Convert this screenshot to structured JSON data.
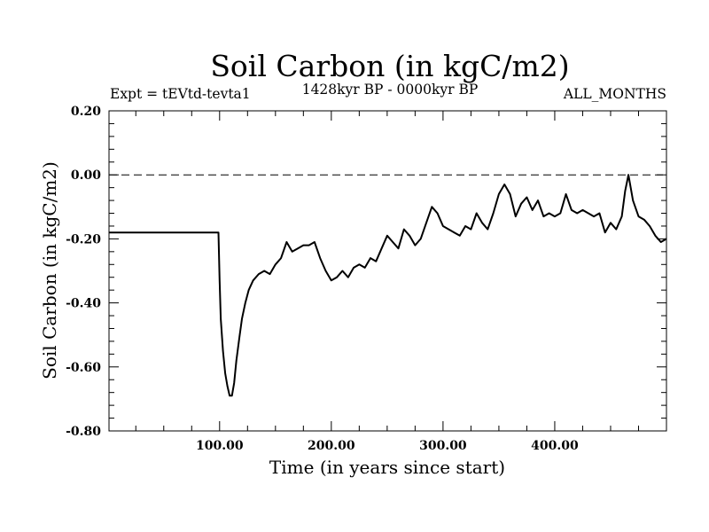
{
  "chart_data": {
    "type": "line",
    "title": "Soil Carbon (in kgC/m2)",
    "subtitle_left": "Expt = tEVtd-tevta1",
    "subtitle_center": "1428kyr BP - 0000kyr BP",
    "subtitle_right": "ALL_MONTHS",
    "xlabel": "Time (in years since start)",
    "ylabel": "Soil Carbon (in kgC/m2)",
    "xlim": [
      1,
      500
    ],
    "ylim": [
      -0.8,
      0.2
    ],
    "xticks": [
      {
        "value": 100,
        "label": "100.00"
      },
      {
        "value": 200,
        "label": "200.00"
      },
      {
        "value": 300,
        "label": "300.00"
      },
      {
        "value": 400,
        "label": "400.00"
      }
    ],
    "yticks": [
      {
        "value": 0.2,
        "label": "0.20"
      },
      {
        "value": 0.0,
        "label": "0.00"
      },
      {
        "value": -0.2,
        "label": "-0.20"
      },
      {
        "value": -0.4,
        "label": "-0.40"
      },
      {
        "value": -0.6,
        "label": "-0.60"
      },
      {
        "value": -0.8,
        "label": "-0.80"
      }
    ],
    "reference_line": {
      "y": 0.0,
      "style": "dashed"
    },
    "series": [
      {
        "name": "Soil Carbon",
        "color": "#000000",
        "x": [
          1,
          50,
          99,
          100,
          101,
          103,
          105,
          107,
          109,
          111,
          113,
          115,
          118,
          120,
          123,
          126,
          130,
          135,
          140,
          145,
          150,
          155,
          160,
          165,
          170,
          175,
          180,
          185,
          190,
          195,
          200,
          205,
          210,
          215,
          220,
          225,
          230,
          235,
          240,
          245,
          250,
          255,
          260,
          265,
          270,
          275,
          280,
          285,
          290,
          295,
          300,
          305,
          310,
          315,
          320,
          325,
          330,
          335,
          340,
          345,
          350,
          355,
          360,
          365,
          370,
          375,
          380,
          385,
          390,
          395,
          400,
          405,
          410,
          415,
          420,
          425,
          430,
          435,
          440,
          445,
          450,
          455,
          460,
          463,
          466,
          470,
          475,
          480,
          485,
          490,
          495,
          500
        ],
        "values": [
          -0.18,
          -0.18,
          -0.18,
          -0.33,
          -0.45,
          -0.55,
          -0.62,
          -0.66,
          -0.69,
          -0.69,
          -0.65,
          -0.58,
          -0.5,
          -0.45,
          -0.4,
          -0.36,
          -0.33,
          -0.31,
          -0.3,
          -0.31,
          -0.28,
          -0.26,
          -0.21,
          -0.24,
          -0.23,
          -0.22,
          -0.22,
          -0.21,
          -0.26,
          -0.3,
          -0.33,
          -0.32,
          -0.3,
          -0.32,
          -0.29,
          -0.28,
          -0.29,
          -0.26,
          -0.27,
          -0.23,
          -0.19,
          -0.21,
          -0.23,
          -0.17,
          -0.19,
          -0.22,
          -0.2,
          -0.15,
          -0.1,
          -0.12,
          -0.16,
          -0.17,
          -0.18,
          -0.19,
          -0.16,
          -0.17,
          -0.12,
          -0.15,
          -0.17,
          -0.12,
          -0.06,
          -0.03,
          -0.06,
          -0.13,
          -0.09,
          -0.07,
          -0.11,
          -0.08,
          -0.13,
          -0.12,
          -0.13,
          -0.12,
          -0.06,
          -0.11,
          -0.12,
          -0.11,
          -0.12,
          -0.13,
          -0.12,
          -0.18,
          -0.15,
          -0.17,
          -0.13,
          -0.05,
          0.0,
          -0.08,
          -0.13,
          -0.14,
          -0.16,
          -0.19,
          -0.21,
          -0.2
        ]
      }
    ]
  }
}
